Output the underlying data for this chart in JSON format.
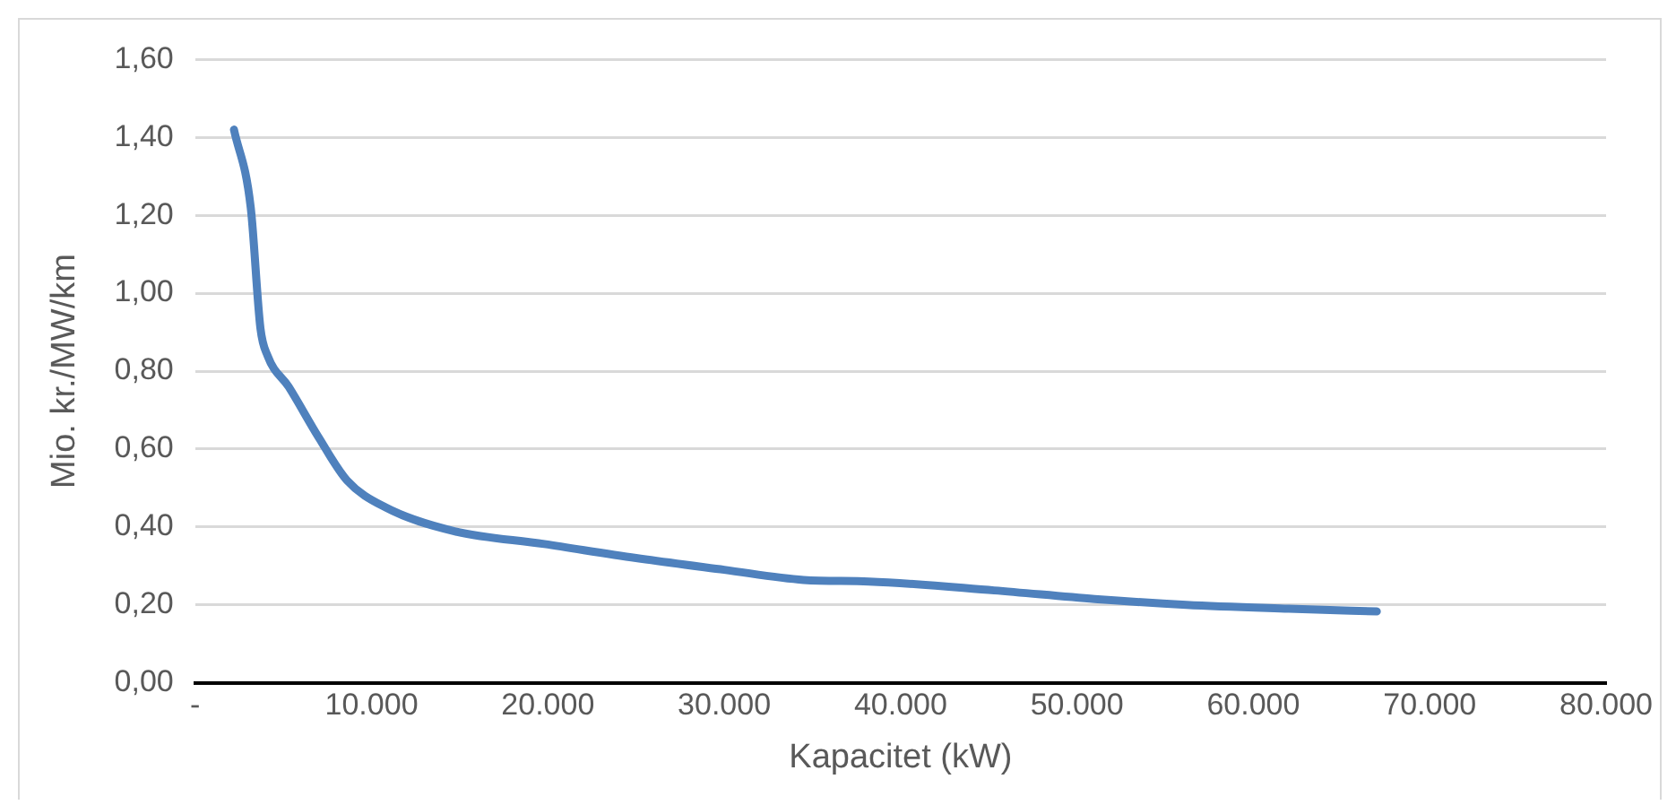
{
  "chart_data": {
    "type": "line",
    "xlabel": "Kapacitet (kW)",
    "ylabel": "Mio. kr./MW/km",
    "x": [
      2200,
      3150,
      3700,
      4100,
      5300,
      7000,
      8600,
      10800,
      14600,
      19800,
      25000,
      30000,
      34500,
      38200,
      45300,
      51000,
      56200,
      62000,
      67000
    ],
    "series": [
      {
        "color": "#4f81bd",
        "values": [
          1.42,
          1.22,
          0.91,
          0.84,
          0.76,
          0.63,
          0.52,
          0.45,
          0.39,
          0.356,
          0.32,
          0.29,
          0.264,
          0.26,
          0.237,
          0.215,
          0.2,
          0.19,
          0.183
        ]
      }
    ],
    "xlim": [
      0,
      80000
    ],
    "xticks": [
      {
        "value": 0,
        "label": "-"
      },
      {
        "value": 10000,
        "label": "10.000"
      },
      {
        "value": 20000,
        "label": "20.000"
      },
      {
        "value": 30000,
        "label": "30.000"
      },
      {
        "value": 40000,
        "label": "40.000"
      },
      {
        "value": 50000,
        "label": "50.000"
      },
      {
        "value": 60000,
        "label": "60.000"
      },
      {
        "value": 70000,
        "label": "70.000"
      },
      {
        "value": 80000,
        "label": "80.000"
      }
    ],
    "ylim": [
      0,
      1.6
    ],
    "yticks": [
      {
        "value": 0,
        "label": "0,00"
      },
      {
        "value": 0.2,
        "label": "0,20"
      },
      {
        "value": 0.4,
        "label": "0,40"
      },
      {
        "value": 0.6,
        "label": "0,60"
      },
      {
        "value": 0.8,
        "label": "0,80"
      },
      {
        "value": 1.0,
        "label": "1,00"
      },
      {
        "value": 1.2,
        "label": "1,20"
      },
      {
        "value": 1.4,
        "label": "1,40"
      },
      {
        "value": 1.6,
        "label": "1,60"
      }
    ],
    "grid": "y",
    "legend": false,
    "marker": "none",
    "line_style": "solid"
  }
}
